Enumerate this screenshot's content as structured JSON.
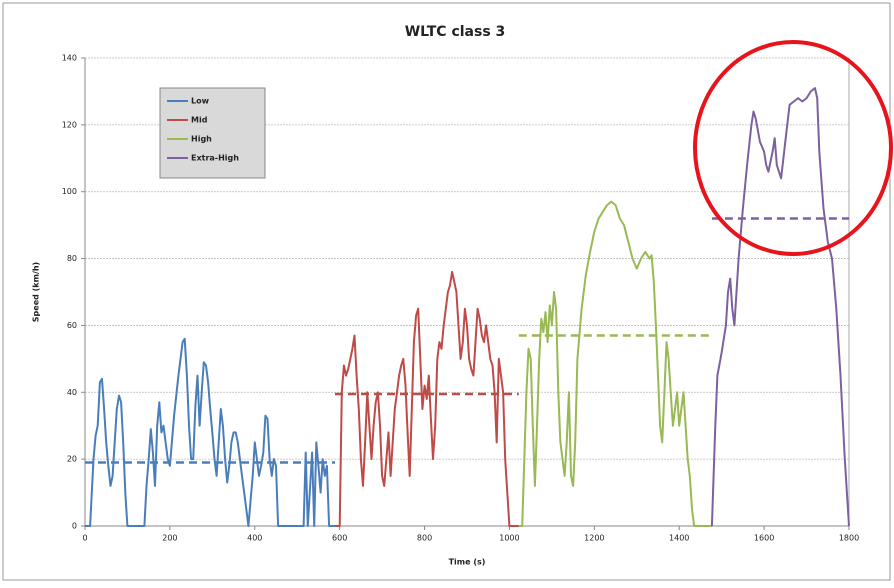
{
  "chart_data": {
    "type": "line",
    "title": "WLTC class 3",
    "x_label": "Time (s)",
    "y_label": "Speed (km/h)",
    "xlim": [
      0,
      1800
    ],
    "xticks": [
      0,
      200,
      400,
      600,
      800,
      1000,
      1200,
      1400,
      1600,
      1800
    ],
    "ylim": [
      0,
      140
    ],
    "yticks": [
      0,
      20,
      40,
      60,
      80,
      100,
      120,
      140
    ],
    "grid": true,
    "legend": "upper left",
    "series": [
      {
        "name": "Low",
        "color": "#4a7ebb",
        "mean": 19,
        "x": [
          0,
          12,
          20,
          25,
          30,
          35,
          40,
          45,
          50,
          55,
          60,
          65,
          70,
          75,
          80,
          85,
          90,
          95,
          100,
          140,
          145,
          150,
          155,
          160,
          165,
          170,
          175,
          180,
          185,
          190,
          195,
          200,
          210,
          220,
          230,
          235,
          240,
          245,
          250,
          255,
          260,
          265,
          270,
          275,
          280,
          285,
          290,
          295,
          300,
          305,
          310,
          315,
          320,
          325,
          330,
          335,
          340,
          345,
          350,
          355,
          360,
          365,
          370,
          375,
          380,
          385,
          395,
          400,
          405,
          410,
          415,
          420,
          425,
          430,
          435,
          440,
          445,
          450,
          455,
          515,
          520,
          525,
          535,
          540,
          545,
          550,
          555,
          560,
          565,
          570,
          575,
          589
        ],
        "values": [
          0,
          0,
          20,
          27,
          30,
          43,
          44,
          35,
          25,
          18,
          12,
          15,
          25,
          35,
          39,
          37,
          25,
          10,
          0,
          0,
          12,
          20,
          29,
          22,
          12,
          30,
          37,
          28,
          30,
          25,
          20,
          18,
          33,
          45,
          55,
          56,
          45,
          30,
          20,
          20,
          36,
          45,
          30,
          40,
          49,
          48,
          43,
          35,
          28,
          20,
          15,
          25,
          35,
          30,
          20,
          13,
          18,
          25,
          28,
          28,
          25,
          20,
          15,
          10,
          5,
          0,
          15,
          25,
          20,
          15,
          18,
          22,
          33,
          32,
          20,
          15,
          20,
          18,
          0,
          0,
          22,
          0,
          22,
          0,
          25,
          18,
          10,
          20,
          15,
          18,
          0,
          0
        ]
      },
      {
        "name": "Mid",
        "color": "#be4b48",
        "mean": 39.5,
        "x": [
          589,
          600,
          605,
          610,
          615,
          620,
          625,
          630,
          635,
          640,
          645,
          650,
          655,
          660,
          665,
          670,
          675,
          680,
          685,
          690,
          695,
          700,
          705,
          710,
          715,
          720,
          725,
          730,
          735,
          740,
          745,
          750,
          755,
          760,
          765,
          770,
          775,
          780,
          785,
          790,
          795,
          800,
          805,
          810,
          815,
          820,
          825,
          830,
          835,
          840,
          845,
          850,
          855,
          860,
          865,
          870,
          875,
          880,
          885,
          890,
          895,
          900,
          905,
          910,
          915,
          920,
          925,
          930,
          935,
          940,
          945,
          950,
          955,
          960,
          965,
          970,
          975,
          980,
          985,
          990,
          995,
          1000,
          1022
        ],
        "values": [
          0,
          0,
          40,
          48,
          45,
          47,
          50,
          53,
          57,
          45,
          35,
          20,
          12,
          25,
          40,
          30,
          20,
          30,
          37,
          40,
          30,
          15,
          12,
          20,
          28,
          15,
          25,
          35,
          40,
          45,
          48,
          50,
          42,
          28,
          15,
          35,
          55,
          63,
          65,
          50,
          35,
          42,
          38,
          45,
          32,
          20,
          30,
          50,
          55,
          53,
          60,
          65,
          70,
          72,
          76,
          73,
          70,
          60,
          50,
          55,
          65,
          60,
          50,
          47,
          45,
          55,
          65,
          62,
          57,
          55,
          60,
          55,
          50,
          48,
          40,
          25,
          50,
          45,
          40,
          20,
          10,
          0,
          0
        ]
      },
      {
        "name": "High",
        "color": "#98b954",
        "mean": 57,
        "x": [
          1022,
          1030,
          1040,
          1045,
          1050,
          1055,
          1060,
          1065,
          1070,
          1075,
          1080,
          1085,
          1090,
          1095,
          1100,
          1105,
          1110,
          1115,
          1120,
          1125,
          1130,
          1135,
          1140,
          1145,
          1150,
          1155,
          1160,
          1170,
          1180,
          1190,
          1200,
          1210,
          1220,
          1230,
          1240,
          1250,
          1260,
          1270,
          1280,
          1290,
          1300,
          1310,
          1320,
          1330,
          1335,
          1340,
          1345,
          1350,
          1355,
          1360,
          1365,
          1370,
          1375,
          1380,
          1385,
          1390,
          1395,
          1400,
          1405,
          1410,
          1415,
          1420,
          1425,
          1430,
          1435,
          1477
        ],
        "values": [
          0,
          0,
          40,
          53,
          50,
          30,
          12,
          30,
          50,
          62,
          58,
          64,
          55,
          66,
          60,
          70,
          65,
          40,
          25,
          20,
          15,
          25,
          40,
          15,
          12,
          25,
          50,
          65,
          75,
          82,
          88,
          92,
          94,
          96,
          97,
          96,
          92,
          90,
          85,
          80,
          77,
          80,
          82,
          80,
          81,
          73,
          60,
          45,
          30,
          25,
          40,
          55,
          50,
          40,
          30,
          35,
          40,
          30,
          35,
          40,
          30,
          20,
          15,
          5,
          0,
          0
        ]
      },
      {
        "name": "Extra-High",
        "color": "#7d60a0",
        "mean": 92,
        "x": [
          1477,
          1485,
          1490,
          1500,
          1510,
          1515,
          1520,
          1525,
          1530,
          1540,
          1550,
          1560,
          1570,
          1575,
          1580,
          1590,
          1600,
          1605,
          1610,
          1620,
          1625,
          1630,
          1640,
          1650,
          1660,
          1670,
          1680,
          1690,
          1700,
          1710,
          1720,
          1725,
          1730,
          1740,
          1750,
          1760,
          1770,
          1780,
          1790,
          1800
        ],
        "values": [
          0,
          30,
          45,
          52,
          60,
          70,
          74,
          65,
          60,
          80,
          95,
          108,
          120,
          124,
          122,
          115,
          112,
          108,
          106,
          112,
          116,
          108,
          104,
          115,
          126,
          127,
          128,
          127,
          128,
          130,
          131,
          128,
          112,
          95,
          85,
          80,
          65,
          45,
          20,
          0
        ]
      }
    ]
  }
}
